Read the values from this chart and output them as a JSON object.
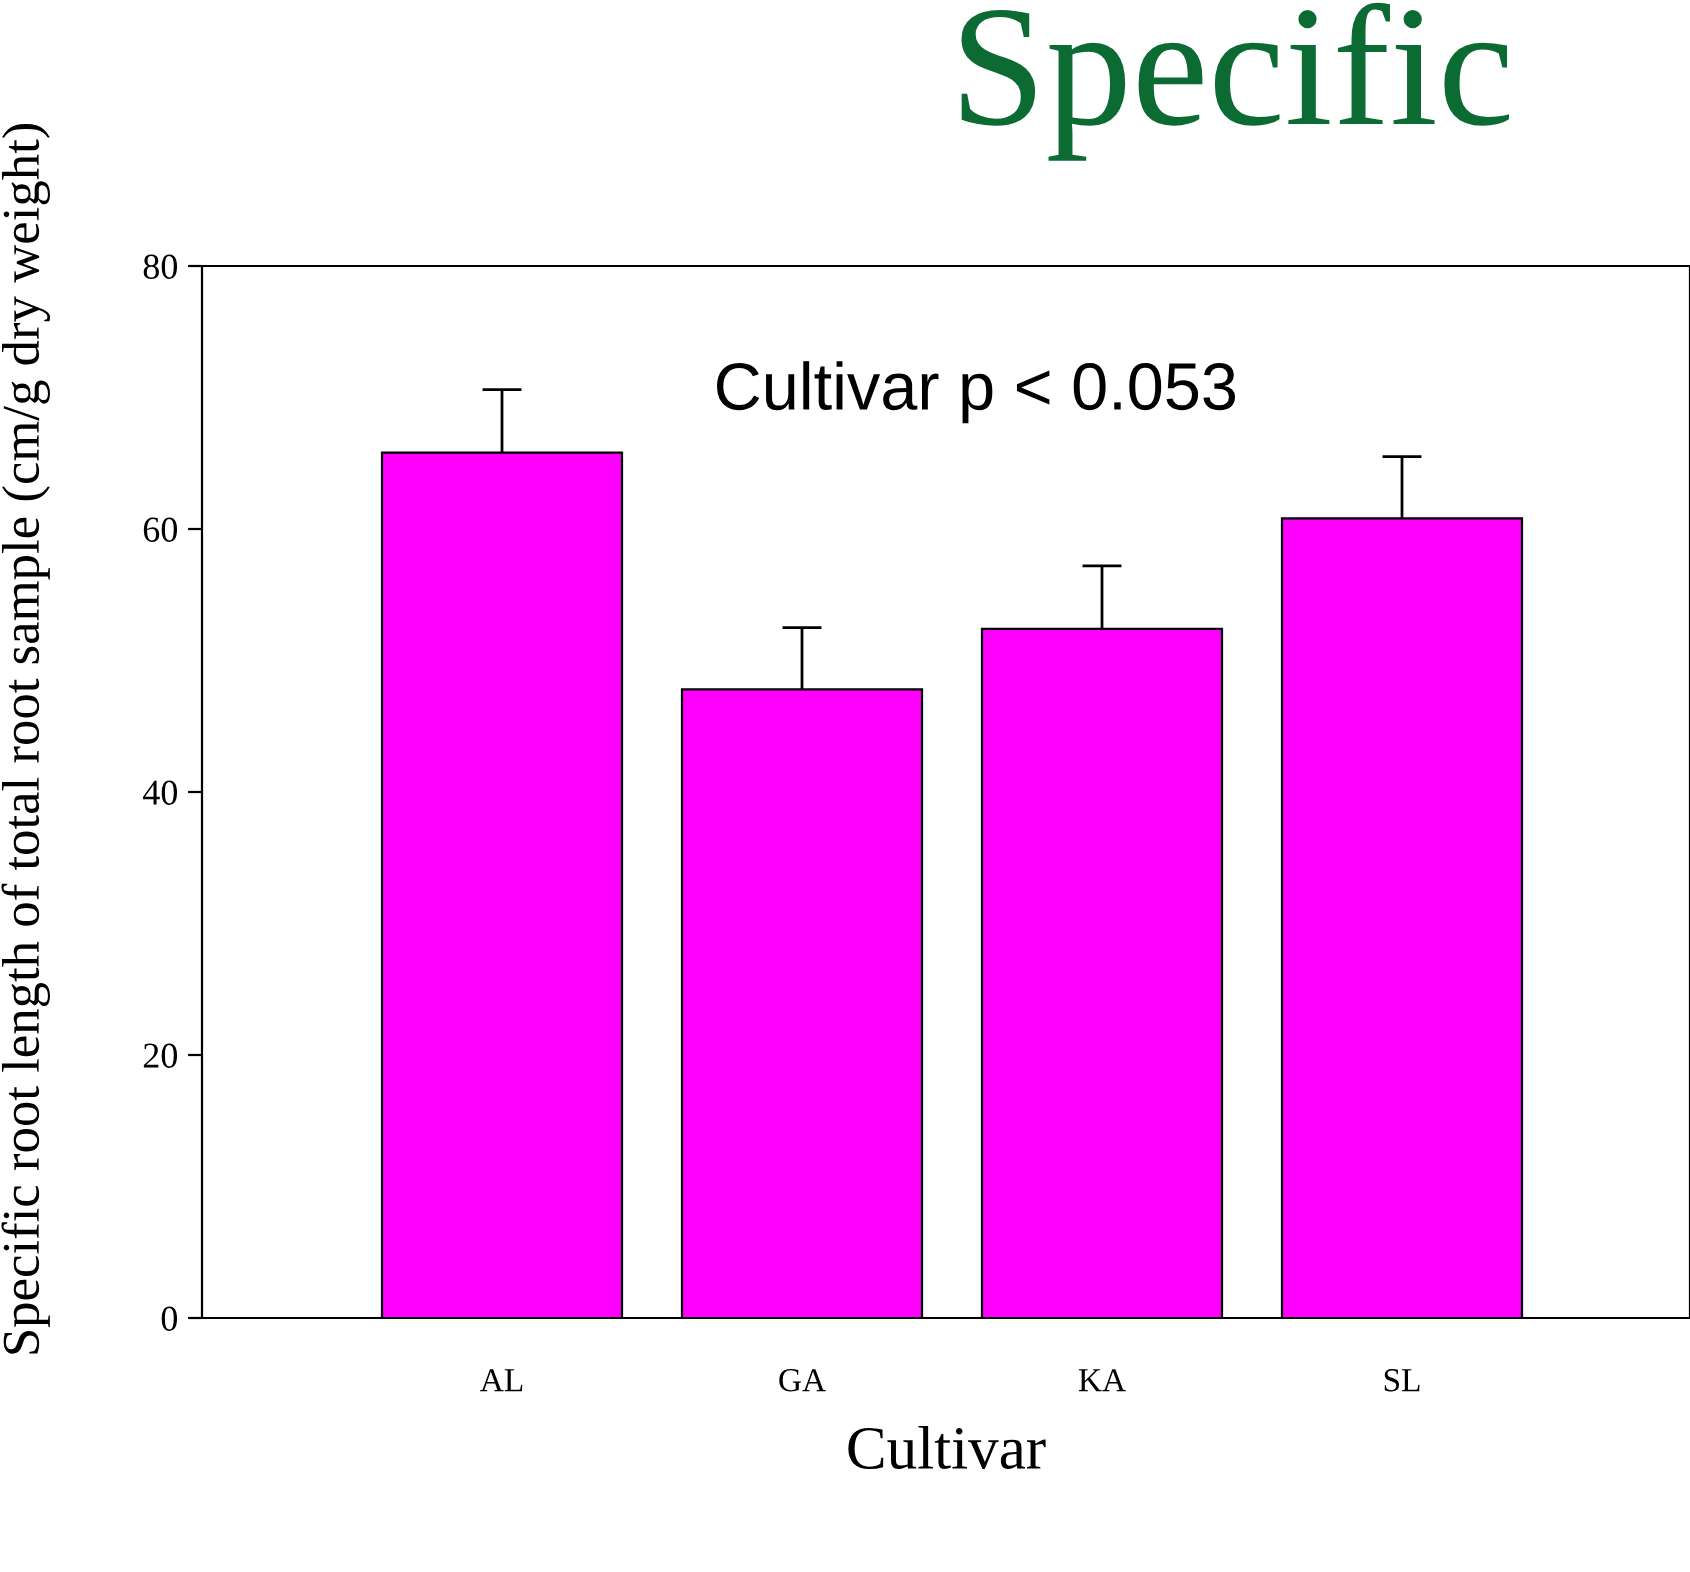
{
  "chart_data": {
    "type": "bar",
    "title": "Specific",
    "xlabel": "Cultivar",
    "ylabel": "Specific root length of total root sample (cm/g dry weight)",
    "categories": [
      "AL",
      "GA",
      "KA",
      "SL"
    ],
    "values": [
      65.8,
      47.8,
      52.4,
      60.8
    ],
    "errors": [
      4.8,
      4.7,
      4.8,
      4.7
    ],
    "color": "#ff00ff",
    "ylim": [
      0,
      80
    ],
    "yticks": [
      0,
      20,
      40,
      60,
      80
    ],
    "annotations": [
      "Cultivar p < 0.053"
    ],
    "grid": false
  }
}
